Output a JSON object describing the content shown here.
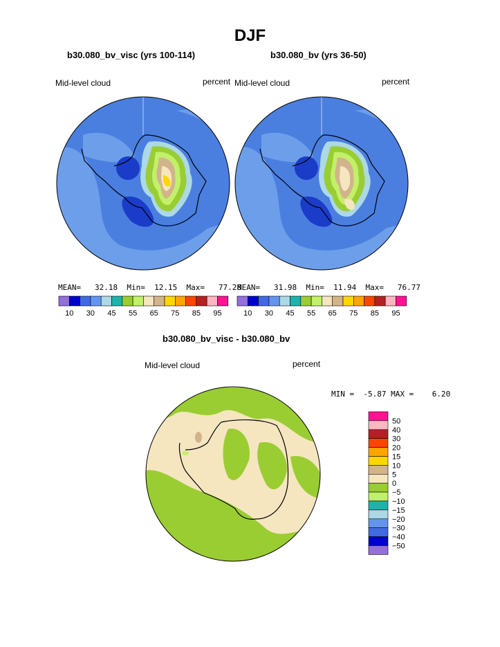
{
  "title": "DJF",
  "panels": [
    {
      "case": "b30.080_bv_visc (yrs 100-114)",
      "field": "Mid-level cloud",
      "units": "percent",
      "stats": {
        "mean_label": "MEAN=",
        "mean": "32.18",
        "min_label": "Min=",
        "min": "12.15",
        "max_label": "Max=",
        "max": "77.28"
      }
    },
    {
      "case": "b30.080_bv (yrs 36-50)",
      "field": "Mid-level cloud",
      "units": "percent",
      "stats": {
        "mean_label": "MEAN=",
        "mean": "31.98",
        "min_label": "Min=",
        "min": "11.94",
        "max_label": "Max=",
        "max": "76.77"
      }
    }
  ],
  "colorbar": {
    "colors": [
      "#9370db",
      "#0000cd",
      "#4169e1",
      "#6495ed",
      "#add8e6",
      "#20b2aa",
      "#9acd32",
      "#c2f06a",
      "#f5e6c0",
      "#d2b48c",
      "#ffd700",
      "#ffa500",
      "#ff4500",
      "#b22222",
      "#ffb6c1",
      "#ff1493"
    ],
    "labels": [
      "10",
      "30",
      "45",
      "55",
      "65",
      "75",
      "85",
      "95"
    ]
  },
  "diff": {
    "title": "b30.080_bv_visc - b30.080_bv",
    "field": "Mid-level cloud",
    "units": "percent",
    "min_label": "MIN =",
    "min": "-5.87",
    "max_label": "MAX =",
    "max": "6.20",
    "colors": [
      "#9370db",
      "#0000cd",
      "#4169e1",
      "#6495ed",
      "#add8e6",
      "#20b2aa",
      "#c2f06a",
      "#9acd32",
      "#f5e6c0",
      "#d2b48c",
      "#ffd700",
      "#ffa500",
      "#ff4500",
      "#b22222",
      "#ffb6c1",
      "#ff1493"
    ],
    "labels": [
      "50",
      "40",
      "30",
      "20",
      "15",
      "10",
      "5",
      "0",
      "−5",
      "−10",
      "−15",
      "−20",
      "−30",
      "−40",
      "−50"
    ]
  },
  "legend_colors": {
    "ocean_blue": "#4a7fe0",
    "light_blue": "#6d9eea",
    "deep_blue": "#1a3cc8",
    "tan": "#f5e6c0",
    "green": "#9acd32",
    "coast": "#000000"
  }
}
